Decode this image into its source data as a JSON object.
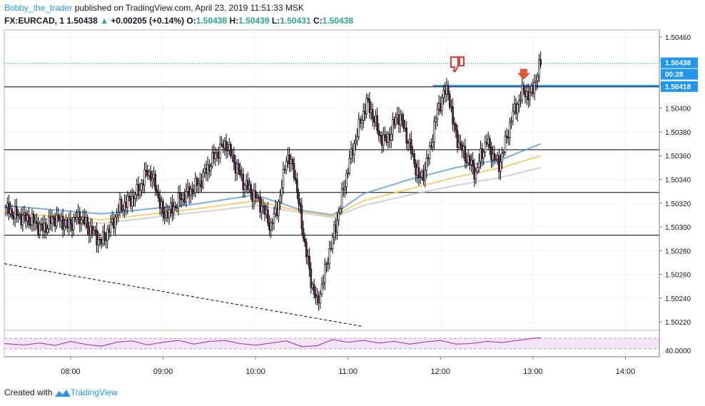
{
  "header": {
    "author": "Bobby_the_trader",
    "published": "published on TradingView.com, April 23, 2019 11:51:33 MSK",
    "symbol": "FX:EURCAD, 1",
    "last": "1.50438",
    "change": "+0.00205 (+0.14%)",
    "o_label": "O:",
    "o_value": "1.50438",
    "h_label": "H:",
    "h_value": "1.50439",
    "l_label": "L:",
    "l_value": "1.50431",
    "c_label": "C:",
    "c_value": "1.50438"
  },
  "footer": {
    "created_with": "Created with",
    "brand": "TradingView"
  },
  "chart_data": {
    "type": "candlestick",
    "x_ticks": [
      "08:00",
      "09:00",
      "10:00",
      "11:00",
      "12:00",
      "13:00",
      "14:00"
    ],
    "y_ticks": [
      "1.50460",
      "1.50440",
      "1.50420",
      "1.50400",
      "1.50380",
      "1.50360",
      "1.50340",
      "1.50320",
      "1.50300",
      "1.50280",
      "1.50260",
      "1.50240",
      "1.50220"
    ],
    "ylim": [
      1.50214,
      1.50466
    ],
    "x_range_minutes": [
      437,
      862
    ],
    "price_tags": [
      {
        "label": "1.50438",
        "color": "#2196f3"
      },
      {
        "label": "00:28",
        "color": "#2196f3"
      },
      {
        "label": "1.50418",
        "color": "#2196f3"
      }
    ],
    "horizontal_lines": [
      1.50418,
      1.50365,
      1.50329,
      1.50293
    ],
    "blue_line": 1.50419,
    "trend_line": {
      "from": [
        437,
        1.50269
      ],
      "to": [
        670,
        1.50216
      ]
    },
    "close_path": [
      [
        437,
        1.50316
      ],
      [
        445,
        1.5031
      ],
      [
        455,
        1.50305
      ],
      [
        462,
        1.50298
      ],
      [
        470,
        1.50308
      ],
      [
        478,
        1.50301
      ],
      [
        486,
        1.50309
      ],
      [
        494,
        1.50296
      ],
      [
        500,
        1.50287
      ],
      [
        506,
        1.503
      ],
      [
        512,
        1.50316
      ],
      [
        518,
        1.50322
      ],
      [
        524,
        1.5033
      ],
      [
        530,
        1.50348
      ],
      [
        535,
        1.50335
      ],
      [
        540,
        1.5031
      ],
      [
        546,
        1.50315
      ],
      [
        552,
        1.50325
      ],
      [
        558,
        1.5033
      ],
      [
        564,
        1.50338
      ],
      [
        570,
        1.50352
      ],
      [
        576,
        1.50365
      ],
      [
        581,
        1.5037
      ],
      [
        586,
        1.50355
      ],
      [
        592,
        1.50338
      ],
      [
        598,
        1.50328
      ],
      [
        604,
        1.50318
      ],
      [
        610,
        1.503
      ],
      [
        616,
        1.50325
      ],
      [
        620,
        1.5036
      ],
      [
        625,
        1.50348
      ],
      [
        628,
        1.5032
      ],
      [
        632,
        1.50285
      ],
      [
        636,
        1.50255
      ],
      [
        640,
        1.50235
      ],
      [
        644,
        1.50256
      ],
      [
        648,
        1.5028
      ],
      [
        652,
        1.503
      ],
      [
        656,
        1.50325
      ],
      [
        660,
        1.5035
      ],
      [
        664,
        1.5037
      ],
      [
        668,
        1.50388
      ],
      [
        672,
        1.50405
      ],
      [
        676,
        1.50395
      ],
      [
        680,
        1.50378
      ],
      [
        684,
        1.50372
      ],
      [
        688,
        1.5038
      ],
      [
        692,
        1.50395
      ],
      [
        696,
        1.50385
      ],
      [
        700,
        1.50368
      ],
      [
        703,
        1.50355
      ],
      [
        706,
        1.5034
      ],
      [
        710,
        1.50348
      ],
      [
        714,
        1.5037
      ],
      [
        718,
        1.50398
      ],
      [
        722,
        1.50412
      ],
      [
        725,
        1.50415
      ],
      [
        728,
        1.50388
      ],
      [
        732,
        1.5037
      ],
      [
        736,
        1.5036
      ],
      [
        740,
        1.50352
      ],
      [
        743,
        1.50345
      ],
      [
        746,
        1.5036
      ],
      [
        750,
        1.50372
      ],
      [
        754,
        1.5036
      ],
      [
        758,
        1.50352
      ],
      [
        762,
        1.5037
      ],
      [
        766,
        1.50392
      ],
      [
        770,
        1.50404
      ],
      [
        774,
        1.50415
      ],
      [
        778,
        1.5041
      ],
      [
        782,
        1.50425
      ],
      [
        785,
        1.50438
      ]
    ],
    "moving_averages": [
      {
        "color": "#5b9bd5",
        "points": [
          [
            437,
            1.50318
          ],
          [
            500,
            1.50311
          ],
          [
            560,
            1.50319
          ],
          [
            600,
            1.50327
          ],
          [
            630,
            1.50314
          ],
          [
            650,
            1.5031
          ],
          [
            670,
            1.50328
          ],
          [
            700,
            1.5034
          ],
          [
            730,
            1.5035
          ],
          [
            760,
            1.50357
          ],
          [
            785,
            1.5037
          ]
        ]
      },
      {
        "color": "#f5c453",
        "points": [
          [
            437,
            1.50312
          ],
          [
            500,
            1.50306
          ],
          [
            560,
            1.50315
          ],
          [
            600,
            1.50322
          ],
          [
            630,
            1.50313
          ],
          [
            650,
            1.50309
          ],
          [
            670,
            1.50322
          ],
          [
            700,
            1.50332
          ],
          [
            730,
            1.50342
          ],
          [
            760,
            1.5035
          ],
          [
            785,
            1.5036
          ]
        ]
      },
      {
        "color": "#c8c8c8",
        "points": [
          [
            437,
            1.50309
          ],
          [
            500,
            1.50303
          ],
          [
            560,
            1.50312
          ],
          [
            600,
            1.50318
          ],
          [
            630,
            1.50312
          ],
          [
            650,
            1.50308
          ],
          [
            670,
            1.50318
          ],
          [
            700,
            1.50327
          ],
          [
            730,
            1.50335
          ],
          [
            760,
            1.50342
          ],
          [
            785,
            1.5035
          ]
        ]
      }
    ],
    "rsi": {
      "label": "40.0000",
      "levels": [
        70,
        30
      ],
      "values": [
        [
          437,
          50
        ],
        [
          450,
          45
        ],
        [
          460,
          52
        ],
        [
          470,
          43
        ],
        [
          480,
          58
        ],
        [
          490,
          47
        ],
        [
          500,
          40
        ],
        [
          510,
          55
        ],
        [
          520,
          60
        ],
        [
          530,
          45
        ],
        [
          540,
          55
        ],
        [
          550,
          62
        ],
        [
          560,
          48
        ],
        [
          570,
          58
        ],
        [
          580,
          62
        ],
        [
          590,
          50
        ],
        [
          600,
          44
        ],
        [
          610,
          52
        ],
        [
          620,
          60
        ],
        [
          630,
          38
        ],
        [
          640,
          42
        ],
        [
          650,
          65
        ],
        [
          660,
          55
        ],
        [
          670,
          62
        ],
        [
          680,
          52
        ],
        [
          690,
          58
        ],
        [
          700,
          48
        ],
        [
          710,
          56
        ],
        [
          720,
          62
        ],
        [
          730,
          48
        ],
        [
          740,
          50
        ],
        [
          750,
          58
        ],
        [
          760,
          54
        ],
        [
          770,
          62
        ],
        [
          780,
          70
        ],
        [
          785,
          72
        ]
      ]
    },
    "annotations": [
      {
        "type": "arrow-down",
        "color": "#e45536"
      },
      {
        "type": "thumbs-down",
        "color": "#e53935"
      }
    ]
  }
}
